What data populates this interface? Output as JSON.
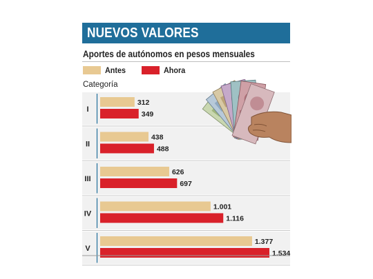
{
  "header": {
    "title": "NUEVOS VALORES"
  },
  "colors": {
    "header_bg": "#1f6e9a",
    "antes": "#e8c992",
    "ahora": "#d9212a",
    "row_bg": "#f1f1f1",
    "accent_line": "#1f6e9a"
  },
  "chart_data": {
    "type": "bar",
    "orientation": "horizontal",
    "title": "Aportes de autónomos en pesos mensuales",
    "category_axis_label": "Categoría",
    "categories": [
      "I",
      "II",
      "III",
      "IV",
      "V"
    ],
    "series": [
      {
        "name": "Antes",
        "values": [
          312,
          438,
          626,
          1001,
          1377
        ],
        "labels": [
          "312",
          "438",
          "626",
          "1.001",
          "1.377"
        ]
      },
      {
        "name": "Ahora",
        "values": [
          349,
          488,
          697,
          1116,
          1534
        ],
        "labels": [
          "349",
          "488",
          "697",
          "1.116",
          "1.534"
        ]
      }
    ],
    "xlim": [
      0,
      1534
    ],
    "legend": "top-left",
    "grid": false
  },
  "illustration": {
    "icon": "banknotes-in-hand-icon"
  }
}
